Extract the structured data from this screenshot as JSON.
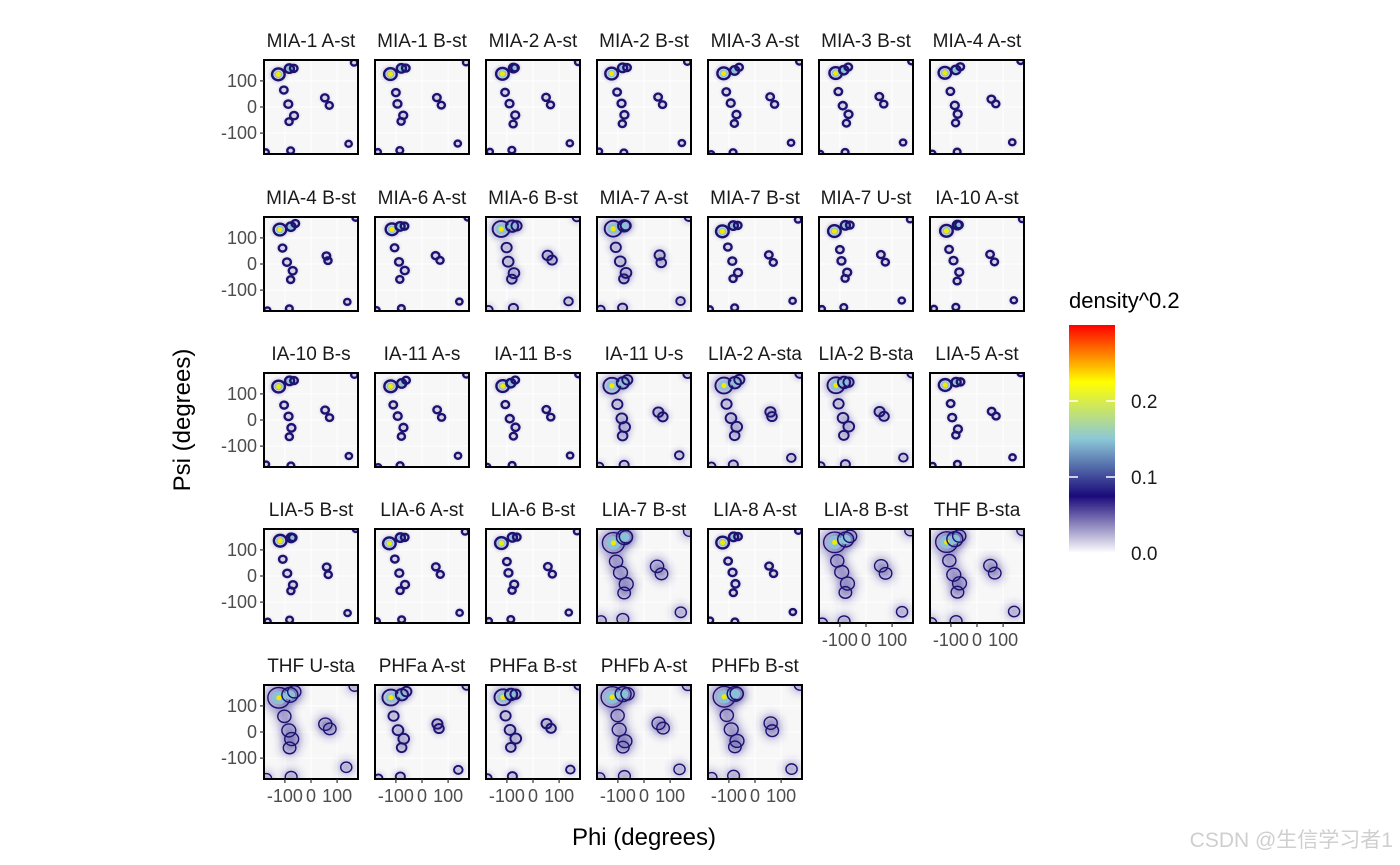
{
  "chart_data": {
    "type": "heatmap",
    "kind": "faceted 2D density (Ramachandran) plot",
    "xlabel": "Phi (degrees)",
    "ylabel": "Psi (degrees)",
    "x_range": [
      -180,
      180
    ],
    "y_range": [
      -180,
      180
    ],
    "x_ticks": [
      {
        "value": -100,
        "label": "-100"
      },
      {
        "value": 0,
        "label": "0"
      },
      {
        "value": 100,
        "label": "100"
      }
    ],
    "y_ticks": [
      {
        "value": 100,
        "label": "100"
      },
      {
        "value": 0,
        "label": "0"
      },
      {
        "value": -100,
        "label": "-100"
      }
    ],
    "legend": {
      "title": "density^0.2",
      "position": "right",
      "range": [
        0,
        0.3
      ],
      "ticks": [
        {
          "value": 0.0,
          "label": "0.0"
        },
        {
          "value": 0.1,
          "label": "0.1"
        },
        {
          "value": 0.2,
          "label": "0.2"
        }
      ],
      "colors": [
        "#ffffff",
        "#1a0a7a",
        "#8cc8d8",
        "#ffff00",
        "#ff0000"
      ]
    },
    "facets": [
      {
        "title": "MIA-1 A-st",
        "spread": 0
      },
      {
        "title": "MIA-1 B-st",
        "spread": 0
      },
      {
        "title": "MIA-2 A-st",
        "spread": 0
      },
      {
        "title": "MIA-2 B-st",
        "spread": 0
      },
      {
        "title": "MIA-3 A-st",
        "spread": 0
      },
      {
        "title": "MIA-3 B-st",
        "spread": 0
      },
      {
        "title": "MIA-4 A-st",
        "spread": 0
      },
      {
        "title": "MIA-4 B-st",
        "spread": 0
      },
      {
        "title": "MIA-6 A-st",
        "spread": 0
      },
      {
        "title": "MIA-6 B-st",
        "spread": 1
      },
      {
        "title": "MIA-7 A-st",
        "spread": 1
      },
      {
        "title": "MIA-7 B-st",
        "spread": 0
      },
      {
        "title": "MIA-7 U-st",
        "spread": 0
      },
      {
        "title": "IA-10 A-st",
        "spread": 0
      },
      {
        "title": "IA-10 B-s",
        "spread": 0
      },
      {
        "title": "IA-11 A-s",
        "spread": 0
      },
      {
        "title": "IA-11 B-s",
        "spread": 0
      },
      {
        "title": "IA-11 U-s",
        "spread": 1
      },
      {
        "title": "LIA-2 A-sta",
        "spread": 1
      },
      {
        "title": "LIA-2 B-sta",
        "spread": 1
      },
      {
        "title": "LIA-5 A-st",
        "spread": 0
      },
      {
        "title": "LIA-5 B-st",
        "spread": 0
      },
      {
        "title": "LIA-6 A-st",
        "spread": 0
      },
      {
        "title": "LIA-6 B-st",
        "spread": 0
      },
      {
        "title": "LIA-7 B-st",
        "spread": 2
      },
      {
        "title": "LIA-8 A-st",
        "spread": 0
      },
      {
        "title": "LIA-8 B-st",
        "spread": 2
      },
      {
        "title": "THF B-sta",
        "spread": 2
      },
      {
        "title": "THF U-sta",
        "spread": 2
      },
      {
        "title": "PHFa A-st",
        "spread": 1
      },
      {
        "title": "PHFa B-st",
        "spread": 1
      },
      {
        "title": "PHFb A-st",
        "spread": 2
      },
      {
        "title": "PHFb B-st",
        "spread": 2
      }
    ],
    "density_peaks": [
      {
        "phi": -120,
        "psi": 130,
        "weight": 1.0
      },
      {
        "phi": -80,
        "psi": 145,
        "weight": 0.55
      },
      {
        "phi": -65,
        "psi": 150,
        "weight": 0.35
      },
      {
        "phi": -105,
        "psi": 60,
        "weight": 0.35
      },
      {
        "phi": -90,
        "psi": 10,
        "weight": 0.4
      },
      {
        "phi": -70,
        "psi": -30,
        "weight": 0.4
      },
      {
        "phi": -80,
        "psi": -60,
        "weight": 0.3
      },
      {
        "phi": 55,
        "psi": 35,
        "weight": 0.35
      },
      {
        "phi": 70,
        "psi": 10,
        "weight": 0.3
      },
      {
        "phi": -80,
        "psi": -170,
        "weight": 0.25
      },
      {
        "phi": 140,
        "psi": -140,
        "weight": 0.2
      },
      {
        "phi": 170,
        "psi": 175,
        "weight": 0.2
      },
      {
        "phi": -170,
        "psi": -175,
        "weight": 0.15
      }
    ]
  },
  "watermark": "CSDN @生信学习者1"
}
